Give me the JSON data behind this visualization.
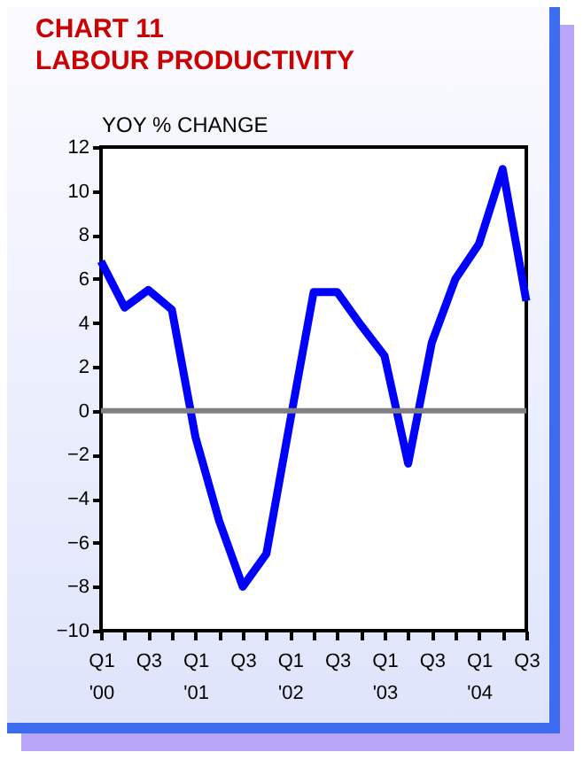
{
  "chart_data": {
    "type": "line",
    "title": "CHART 11",
    "subtitle": "LABOUR PRODUCTIVITY",
    "ylabel": "YOY % CHANGE",
    "categories": [
      "Q1 '00",
      null,
      "Q3",
      null,
      "Q1 '01",
      null,
      "Q3",
      null,
      "Q1 '02",
      null,
      "Q3",
      null,
      "Q1 '03",
      null,
      "Q3",
      null,
      "Q1 '04",
      null,
      "Q3"
    ],
    "series": [
      {
        "color": "#0000ff",
        "values": [
          6.8,
          4.7,
          5.5,
          4.6,
          -1.2,
          -5.0,
          -8.0,
          -6.5,
          -0.5,
          5.4,
          5.4,
          3.9,
          2.5,
          -2.4,
          3.1,
          6.0,
          7.6,
          11.0,
          5.0
        ]
      }
    ],
    "ylim": [
      -10,
      12
    ],
    "yticks": [
      -10,
      -8,
      -6,
      -4,
      -2,
      0,
      2,
      4,
      6,
      8,
      10,
      12
    ],
    "ref_lines": [
      {
        "axis": "y",
        "value": 0,
        "color": "#808080"
      }
    ],
    "grid": false
  }
}
